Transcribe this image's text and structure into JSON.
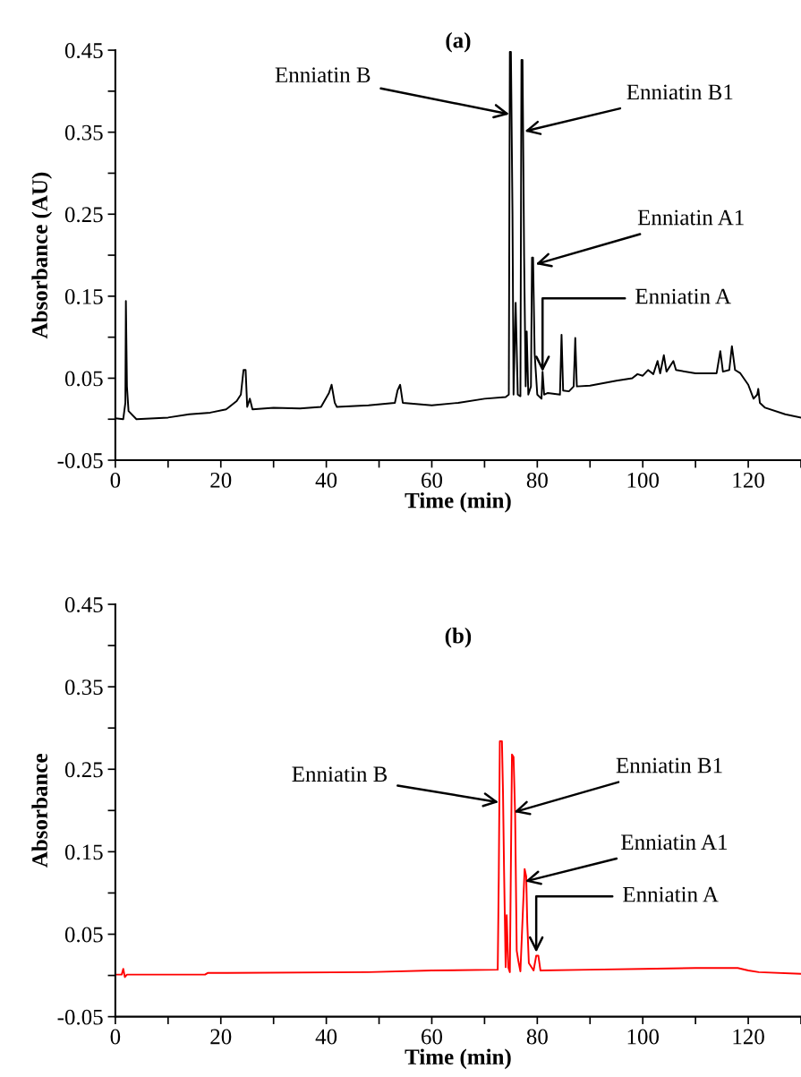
{
  "chart_data": [
    {
      "type": "line",
      "title": "(a)",
      "xlabel": "Time (min)",
      "ylabel": "Absorbance (AU)",
      "xlim": [
        0,
        130
      ],
      "ylim": [
        -0.05,
        0.45
      ],
      "xticks": [
        0,
        {
          "value": 10,
          "label": null
        },
        20,
        {
          "value": 30,
          "label": null
        },
        40,
        {
          "value": 50,
          "label": null
        },
        60,
        {
          "value": 70,
          "label": null
        },
        80,
        {
          "value": 90,
          "label": null
        },
        100,
        {
          "value": 110,
          "label": null
        },
        120,
        {
          "value": 130,
          "label": null
        }
      ],
      "yticks": [
        {
          "value": -0.05,
          "label": "-0.05"
        },
        {
          "value": 0,
          "label": null
        },
        0.05,
        {
          "value": 0.1,
          "label": null
        },
        0.15,
        {
          "value": 0.2,
          "label": null
        },
        0.25,
        {
          "value": 0.3,
          "label": null
        },
        0.35,
        {
          "value": 0.4,
          "label": null
        },
        0.45
      ],
      "grid": false,
      "legend": false,
      "marker": "none",
      "line_style": "solid",
      "annotations": [
        {
          "text": "Enniatin B",
          "x": 74.7,
          "y": 0.372
        },
        {
          "text": "Enniatin B1",
          "x": 77.6,
          "y": 0.351
        },
        {
          "text": "Enniatin A1",
          "x": 79.7,
          "y": 0.189
        },
        {
          "text": "Enniatin A",
          "x": 81.0,
          "y": 0.058
        }
      ],
      "series": [
        {
          "color": "#000000",
          "x": [
            0,
            1.5,
            1.9,
            2.0,
            2.2,
            2.5,
            4,
            10,
            14,
            18,
            21,
            23,
            23.8,
            24.3,
            24.7,
            25,
            25.5,
            26,
            30,
            35,
            39,
            40.5,
            41,
            41.6,
            42,
            48,
            53,
            53.5,
            54,
            54.5,
            60,
            65,
            70,
            74,
            74.6,
            74.8,
            75.0,
            75.3,
            75.5,
            75.9,
            76.3,
            76.8,
            77.0,
            77.2,
            77.5,
            77.8,
            78.0,
            78.3,
            78.8,
            79.0,
            79.2,
            79.5,
            80,
            80.8,
            81.0,
            81.3,
            82,
            84.3,
            84.6,
            84.9,
            86,
            86.9,
            87.2,
            87.5,
            90,
            95,
            98,
            99,
            100,
            101,
            102,
            102.8,
            103.3,
            104,
            104.5,
            105.8,
            106.3,
            110,
            114,
            114.7,
            115.2,
            116.4,
            116.9,
            117.5,
            118.5,
            120,
            121,
            121.7,
            121.9,
            122.2,
            123.2,
            127,
            130
          ],
          "values": [
            0.001,
            0.0,
            0.02,
            0.144,
            0.04,
            0.01,
            0.0,
            0.002,
            0.006,
            0.008,
            0.012,
            0.022,
            0.03,
            0.06,
            0.06,
            0.015,
            0.025,
            0.012,
            0.014,
            0.013,
            0.015,
            0.032,
            0.042,
            0.02,
            0.015,
            0.017,
            0.02,
            0.035,
            0.042,
            0.02,
            0.017,
            0.02,
            0.025,
            0.027,
            0.03,
            0.448,
            0.448,
            0.25,
            0.03,
            0.142,
            0.03,
            0.028,
            0.438,
            0.438,
            0.2,
            0.04,
            0.107,
            0.03,
            0.04,
            0.197,
            0.197,
            0.08,
            0.03,
            0.025,
            0.058,
            0.03,
            0.032,
            0.03,
            0.103,
            0.035,
            0.034,
            0.04,
            0.099,
            0.04,
            0.041,
            0.047,
            0.05,
            0.055,
            0.053,
            0.06,
            0.055,
            0.071,
            0.056,
            0.078,
            0.058,
            0.071,
            0.06,
            0.056,
            0.056,
            0.083,
            0.058,
            0.06,
            0.089,
            0.06,
            0.056,
            0.042,
            0.025,
            0.03,
            0.037,
            0.02,
            0.014,
            0.006,
            0.002
          ]
        }
      ]
    },
    {
      "type": "line",
      "title": "(b)",
      "xlabel": "Time (min)",
      "ylabel": "Absorbance",
      "xlim": [
        0,
        130
      ],
      "ylim": [
        -0.05,
        0.45
      ],
      "xticks": [
        0,
        {
          "value": 10,
          "label": null
        },
        20,
        {
          "value": 30,
          "label": null
        },
        40,
        {
          "value": 50,
          "label": null
        },
        60,
        {
          "value": 70,
          "label": null
        },
        80,
        {
          "value": 90,
          "label": null
        },
        100,
        {
          "value": 110,
          "label": null
        },
        120,
        {
          "value": 130,
          "label": null
        }
      ],
      "yticks": [
        {
          "value": -0.05,
          "label": "-0.05"
        },
        {
          "value": 0,
          "label": null
        },
        0.05,
        {
          "value": 0.1,
          "label": null
        },
        0.15,
        {
          "value": 0.2,
          "label": null
        },
        0.25,
        {
          "value": 0.3,
          "label": null
        },
        0.35,
        {
          "value": 0.4,
          "label": null
        },
        0.45
      ],
      "grid": false,
      "legend": false,
      "marker": "none",
      "line_style": "solid",
      "annotations": [
        {
          "text": "Enniatin B",
          "x": 72.7,
          "y": 0.21
        },
        {
          "text": "Enniatin B1",
          "x": 75.6,
          "y": 0.198
        },
        {
          "text": "Enniatin A1",
          "x": 77.7,
          "y": 0.114
        },
        {
          "text": "Enniatin A",
          "x": 79.8,
          "y": 0.028
        }
      ],
      "series": [
        {
          "color": "#ff0000",
          "x": [
            0,
            1.2,
            1.5,
            1.8,
            2.2,
            17,
            17.5,
            48,
            60,
            72.5,
            72.7,
            72.9,
            73.3,
            73.5,
            73.7,
            74.0,
            74.2,
            74.5,
            74.8,
            75.2,
            75.5,
            75.8,
            76.1,
            76.4,
            76.8,
            77.6,
            77.9,
            78.1,
            78.4,
            79.3,
            79.8,
            80.2,
            80.6,
            90,
            100,
            110,
            118,
            120,
            122,
            130
          ],
          "values": [
            0.001,
            0.001,
            0.008,
            -0.002,
            0.001,
            0.001,
            0.003,
            0.004,
            0.006,
            0.007,
            0.12,
            0.284,
            0.284,
            0.222,
            0.128,
            0.01,
            0.073,
            0.01,
            0.004,
            0.268,
            0.265,
            0.195,
            0.03,
            0.018,
            0.005,
            0.129,
            0.12,
            0.064,
            0.015,
            0.006,
            0.024,
            0.024,
            0.006,
            0.007,
            0.008,
            0.009,
            0.009,
            0.006,
            0.004,
            0.002
          ]
        }
      ]
    }
  ]
}
